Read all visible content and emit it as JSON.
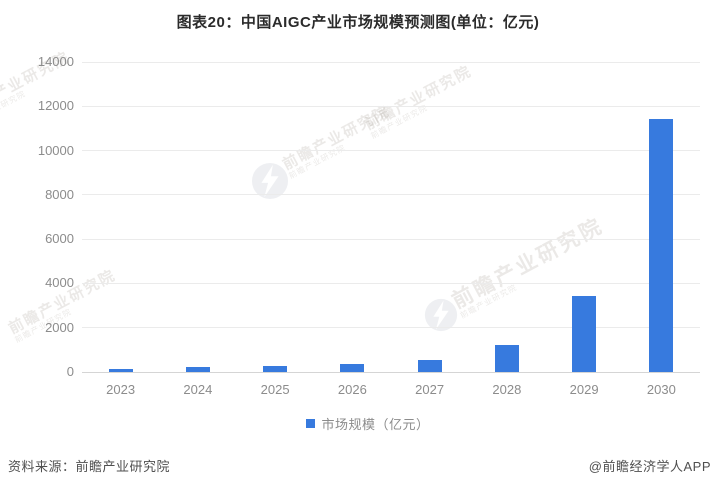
{
  "title": "图表20：中国AIGC产业市场规模预测图(单位：亿元)",
  "chart_data": {
    "type": "bar",
    "title": "图表20：中国AIGC产业市场规模预测图(单位：亿元)",
    "categories": [
      "2023",
      "2024",
      "2025",
      "2026",
      "2027",
      "2028",
      "2029",
      "2030"
    ],
    "values": [
      143,
      220,
      260,
      340,
      560,
      1230,
      3430,
      11441
    ],
    "series_name": "市场规模（亿元）",
    "unit": "亿元",
    "xlabel": "",
    "ylabel": "",
    "ylim": [
      0,
      14000
    ],
    "ytick_step": 2000,
    "yticks": [
      0,
      2000,
      4000,
      6000,
      8000,
      10000,
      12000,
      14000
    ],
    "grid": true,
    "legend_position": "bottom",
    "bar_color": "#377ade"
  },
  "legend": {
    "label": "市场规模（亿元）"
  },
  "footer": {
    "source": "资料来源：前瞻产业研究院",
    "credit": "@前瞻经济学人APP"
  },
  "watermark": {
    "text": "前瞻产业研究院"
  },
  "colors": {
    "bar": "#377ade",
    "gridline": "#ebebeb",
    "axis_line": "#d5d5d5",
    "tick_text": "#8c8c8c",
    "title_text": "#2b2b2b",
    "legend_text": "#8c8c8c",
    "footer_text": "#4f4f4f",
    "watermark": "#8c8378"
  }
}
